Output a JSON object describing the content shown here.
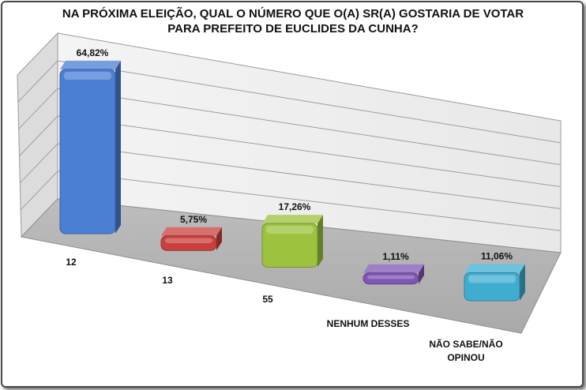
{
  "chart_data": {
    "type": "bar",
    "title_line1": "NA PRÓXIMA ELEIÇÃO, QUAL O NÚMERO QUE O(A) SR(A) GOSTARIA DE VOTAR",
    "title_line2": "PARA PREFEITO DE EUCLIDES DA CUNHA?",
    "categories": [
      "12",
      "13",
      "55",
      "NENHUM DESSES",
      "NÃO SABE/NÃO OPINOU"
    ],
    "values": [
      64.82,
      5.75,
      17.26,
      1.11,
      11.06
    ],
    "value_labels": [
      "64,82%",
      "5,75%",
      "17,26%",
      "1,11%",
      "11,06%"
    ],
    "colors": [
      "#4a7fd4",
      "#c9403c",
      "#9cc23e",
      "#7e56b3",
      "#3fadd0"
    ],
    "ylim": [
      0,
      70
    ],
    "grid": true,
    "projection": "3d"
  }
}
